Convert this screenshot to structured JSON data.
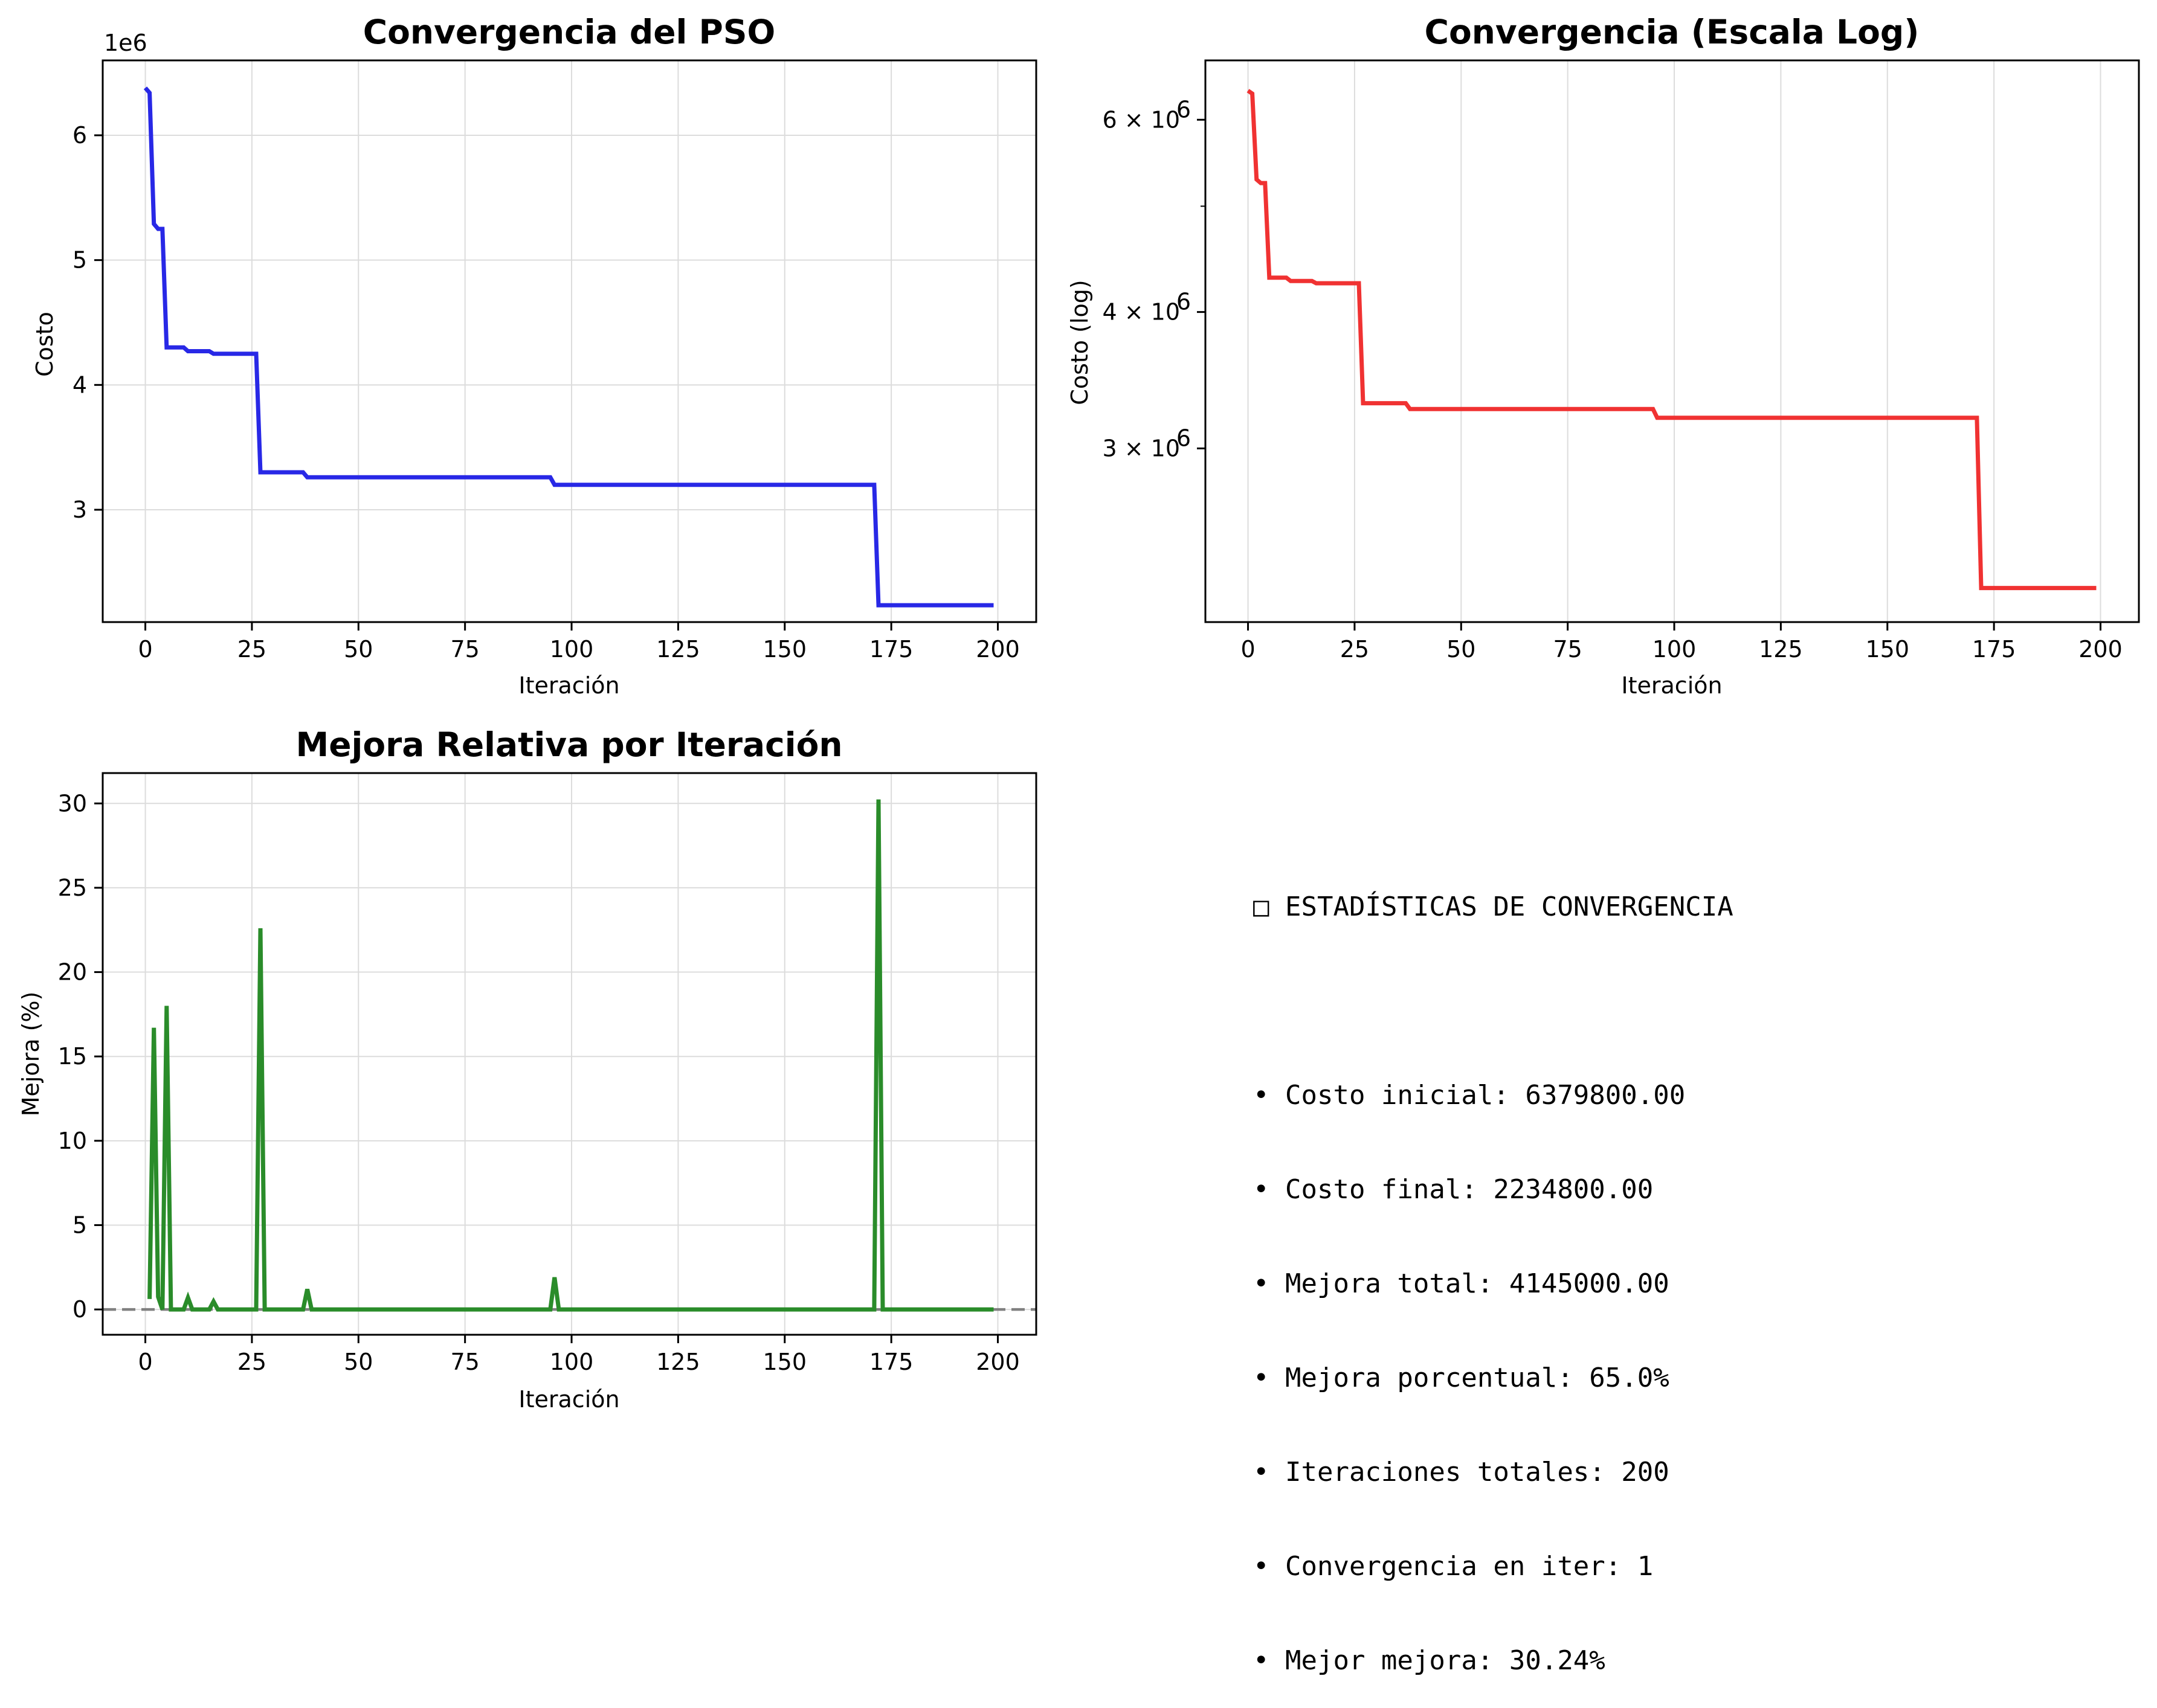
{
  "charts": [
    {
      "title": "Convergencia del PSO",
      "xlabel": "Iteración",
      "ylabel": "Costo",
      "offset_label": "1e6",
      "color": "#2828e6",
      "xticks": [
        "0",
        "25",
        "50",
        "75",
        "100",
        "125",
        "150",
        "175",
        "200"
      ],
      "yticks": [
        "3",
        "4",
        "5",
        "6"
      ]
    },
    {
      "title": "Convergencia (Escala Log)",
      "xlabel": "Iteración",
      "ylabel": "Costo (log)",
      "color": "#f03232",
      "xticks": [
        "0",
        "25",
        "50",
        "75",
        "100",
        "125",
        "150",
        "175",
        "200"
      ],
      "yticks": [
        {
          "base": "3 × 10",
          "exp": "6"
        },
        {
          "base": "4 × 10",
          "exp": "6"
        },
        {
          "base": "6 × 10",
          "exp": "6"
        }
      ]
    },
    {
      "title": "Mejora Relativa por Iteración",
      "xlabel": "Iteración",
      "ylabel": "Mejora (%)",
      "color": "#2a8c2a",
      "xticks": [
        "0",
        "25",
        "50",
        "75",
        "100",
        "125",
        "150",
        "175",
        "200"
      ],
      "yticks": [
        "0",
        "5",
        "10",
        "15",
        "20",
        "25",
        "30"
      ]
    }
  ],
  "chart_data": [
    {
      "type": "line",
      "title": "Convergencia del PSO",
      "xlabel": "Iteración",
      "ylabel": "Costo",
      "xlim": [
        -10,
        209
      ],
      "ylim": [
        2100000,
        6600000
      ],
      "grid": true,
      "steps": [
        [
          0,
          6379800
        ],
        [
          1,
          6340000
        ],
        [
          2,
          5290000
        ],
        [
          3,
          5250000
        ],
        [
          4,
          5250000
        ],
        [
          5,
          4300000
        ],
        [
          9,
          4300000
        ],
        [
          10,
          4270000
        ],
        [
          15,
          4270000
        ],
        [
          16,
          4250000
        ],
        [
          26,
          4250000
        ],
        [
          27,
          3300000
        ],
        [
          37,
          3300000
        ],
        [
          38,
          3260000
        ],
        [
          95,
          3260000
        ],
        [
          96,
          3200000
        ],
        [
          171,
          3200000
        ],
        [
          172,
          2234800
        ],
        [
          199,
          2234800
        ]
      ]
    },
    {
      "type": "line",
      "title": "Convergencia (Escala Log)",
      "xlabel": "Iteración",
      "ylabel": "Costo (log)",
      "yscale": "log",
      "xlim": [
        -10,
        209
      ],
      "ylim": [
        2080000,
        6800000
      ],
      "grid": "x",
      "steps": [
        [
          0,
          6379800
        ],
        [
          1,
          6340000
        ],
        [
          2,
          5290000
        ],
        [
          3,
          5250000
        ],
        [
          4,
          5250000
        ],
        [
          5,
          4300000
        ],
        [
          9,
          4300000
        ],
        [
          10,
          4270000
        ],
        [
          15,
          4270000
        ],
        [
          16,
          4250000
        ],
        [
          26,
          4250000
        ],
        [
          27,
          3300000
        ],
        [
          37,
          3300000
        ],
        [
          38,
          3260000
        ],
        [
          95,
          3260000
        ],
        [
          96,
          3200000
        ],
        [
          171,
          3200000
        ],
        [
          172,
          2234800
        ],
        [
          199,
          2234800
        ]
      ]
    },
    {
      "type": "line",
      "title": "Mejora Relativa por Iteración",
      "xlabel": "Iteración",
      "ylabel": "Mejora (%)",
      "xlim": [
        -10,
        209
      ],
      "ylim": [
        -1.5,
        31.8
      ],
      "grid": true,
      "reference_line": 0,
      "points": [
        [
          1,
          0.62
        ],
        [
          2,
          16.7
        ],
        [
          3,
          0.75
        ],
        [
          4,
          0
        ],
        [
          5,
          18.0
        ],
        [
          6,
          0
        ],
        [
          9,
          0
        ],
        [
          10,
          0.7
        ],
        [
          11,
          0
        ],
        [
          15,
          0
        ],
        [
          16,
          0.47
        ],
        [
          17,
          0
        ],
        [
          26,
          0
        ],
        [
          27,
          22.6
        ],
        [
          28,
          0
        ],
        [
          37,
          0
        ],
        [
          38,
          1.2
        ],
        [
          39,
          0
        ],
        [
          95,
          0
        ],
        [
          96,
          1.9
        ],
        [
          97,
          0
        ],
        [
          171,
          0
        ],
        [
          172,
          30.24
        ],
        [
          173,
          0
        ],
        [
          199,
          0
        ]
      ]
    }
  ],
  "stats": {
    "header_icon": "□",
    "header": "ESTADÍSTICAS DE CONVERGENCIA",
    "lines": [
      "• Costo inicial: 6379800.00",
      "• Costo final: 2234800.00",
      "• Mejora total: 4145000.00",
      "• Mejora porcentual: 65.0%",
      "• Iteraciones totales: 200",
      "• Convergencia en iter: 1",
      "• Mejor mejora: 30.24%"
    ]
  }
}
